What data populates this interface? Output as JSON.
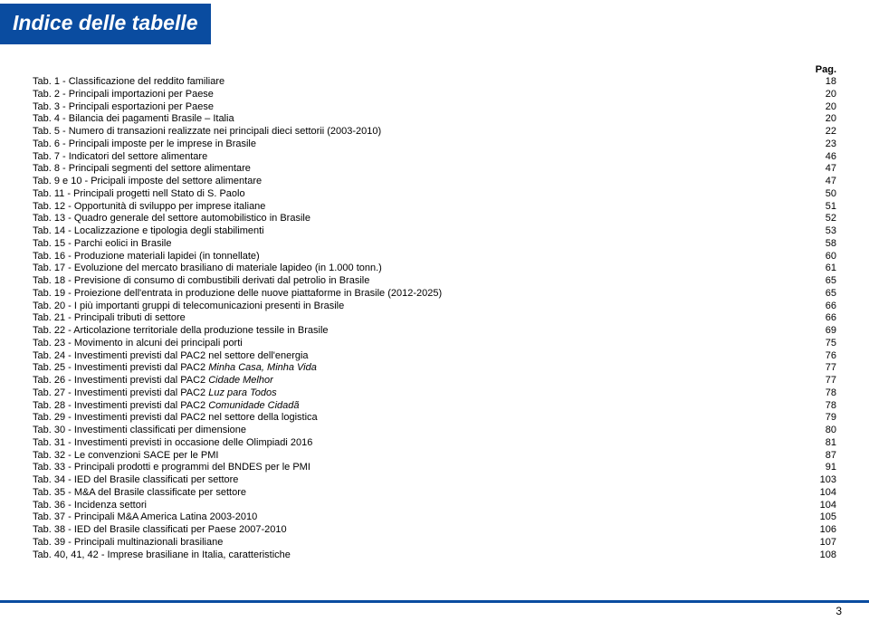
{
  "title": "Indice delle tabelle",
  "pag_label": "Pag.",
  "page_number": "3",
  "colors": {
    "brand": "#0a4ca0",
    "text": "#000000",
    "background": "#ffffff"
  },
  "toc": [
    {
      "label": "Tab. 1 - Classificazione del reddito familiare",
      "page": "18"
    },
    {
      "label": "Tab. 2 - Principali importazioni per Paese",
      "page": "20"
    },
    {
      "label": "Tab. 3 - Principali esportazioni per Paese",
      "page": "20"
    },
    {
      "label": "Tab. 4 - Bilancia dei pagamenti Brasile – Italia",
      "page": "20"
    },
    {
      "label": "Tab. 5 - Numero di transazioni realizzate nei principali dieci settorii (2003-2010)",
      "page": "22"
    },
    {
      "label": "Tab. 6 - Principali imposte per le imprese in Brasile",
      "page": "23"
    },
    {
      "label": "Tab. 7 - Indicatori del settore alimentare",
      "page": "46"
    },
    {
      "label": "Tab. 8 - Principali segmenti del settore alimentare",
      "page": "47"
    },
    {
      "label": "Tab. 9 e 10 - Pricipali imposte del settore alimentare",
      "page": "47"
    },
    {
      "label": "Tab. 11 - Principali progetti nell Stato di S. Paolo",
      "page": "50"
    },
    {
      "label": "Tab. 12 - Opportunità di sviluppo per imprese italiane",
      "page": "51"
    },
    {
      "label": "Tab. 13 - Quadro generale del settore automobilistico in Brasile",
      "page": "52"
    },
    {
      "label": "Tab. 14 - Localizzazione e tipologia degli stabilimenti",
      "page": "53"
    },
    {
      "label": "Tab. 15 - Parchi eolici in Brasile",
      "page": "58"
    },
    {
      "label": "Tab. 16 - Produzione materiali lapidei (in tonnellate)",
      "page": "60"
    },
    {
      "label": "Tab. 17 - Evoluzione del mercato brasiliano di materiale lapideo (in 1.000 tonn.)",
      "page": "61"
    },
    {
      "label": "Tab. 18 - Previsione di consumo di combustibili derivati dal petrolio in Brasile",
      "page": "65"
    },
    {
      "label": "Tab. 19 - Proiezione dell'entrata in produzione delle nuove piattaforme in Brasile (2012-2025)",
      "page": "65"
    },
    {
      "label": "Tab. 20 - I più importanti gruppi di telecomunicazioni presenti in Brasile",
      "page": "66"
    },
    {
      "label": "Tab. 21 - Principali tributi di settore",
      "page": "66"
    },
    {
      "label": "Tab. 22 - Articolazione territoriale della produzione tessile in Brasile",
      "page": "69"
    },
    {
      "label": "Tab. 23 - Movimento in alcuni dei principali porti",
      "page": "75"
    },
    {
      "label": "Tab. 24 - Investimenti previsti dal PAC2 nel settore dell'energia",
      "page": "76"
    },
    {
      "label": "Tab. 25 - Investimenti previsti dal PAC2 Minha Casa, Minha Vida",
      "page": "77",
      "italic_tail": "Minha Casa, Minha Vida"
    },
    {
      "label": "Tab. 26 - Investimenti previsti dal PAC2 Cidade Melhor",
      "page": "77",
      "italic_tail": "Cidade Melhor"
    },
    {
      "label": "Tab. 27 - Investimenti previsti dal PAC2 Luz para Todos",
      "page": "78",
      "italic_tail": "Luz para Todos"
    },
    {
      "label": "Tab. 28 - Investimenti previsti dal PAC2 Comunidade Cidadã",
      "page": "78",
      "italic_tail": "Comunidade Cidadã"
    },
    {
      "label": "Tab. 29 - Investimenti previsti dal PAC2 nel settore della logistica",
      "page": "79"
    },
    {
      "label": "Tab. 30 - Investimenti classificati per dimensione",
      "page": "80"
    },
    {
      "label": "Tab. 31 - Investimenti previsti in occasione delle Olimpiadi 2016",
      "page": "81"
    },
    {
      "label": "Tab. 32 - Le convenzioni SACE per le PMI",
      "page": "87"
    },
    {
      "label": "Tab. 33 - Principali prodotti e programmi del BNDES per le PMI",
      "page": "91"
    },
    {
      "label": "Tab. 34 - IED del Brasile classificati per settore",
      "page": "103"
    },
    {
      "label": "Tab. 35 - M&A del Brasile classificate per settore",
      "page": "104"
    },
    {
      "label": "Tab. 36 - Incidenza settori",
      "page": "104"
    },
    {
      "label": "Tab. 37 - Principali M&A America Latina 2003-2010",
      "page": "105"
    },
    {
      "label": "Tab. 38 - IED del Brasile classificati per Paese 2007-2010",
      "page": "106"
    },
    {
      "label": "Tab. 39 - Principali multinazionali brasiliane",
      "page": "107"
    },
    {
      "label": "Tab. 40, 41, 42 - Imprese brasiliane in Italia, caratteristiche",
      "page": "108"
    }
  ]
}
